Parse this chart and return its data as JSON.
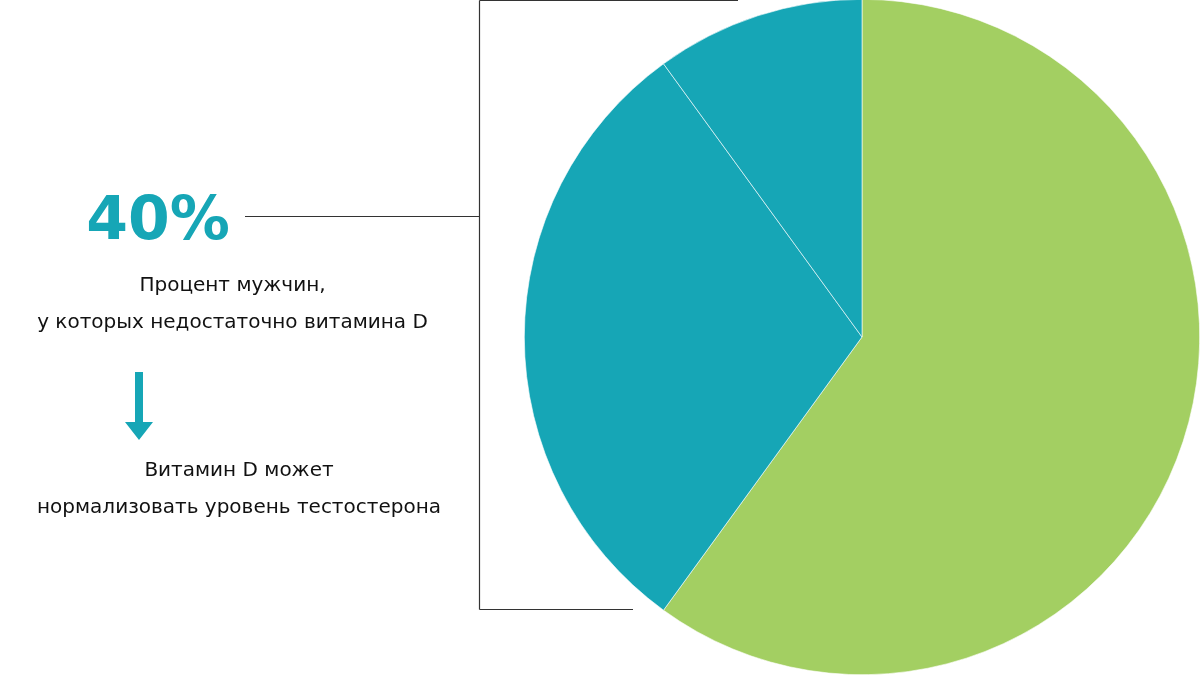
{
  "chart_data": {
    "type": "pie",
    "categories": [
      null,
      null,
      null
    ],
    "values": [
      60,
      30,
      10
    ],
    "colors": [
      "#a3cf62",
      "#16a6b6",
      "#16a6b6"
    ],
    "legend": false,
    "annotations": [
      "40%",
      "Процент мужчин,\nу которых недостаточно витамина D",
      "Витамин D может\nнормализовать уровень тестостерона"
    ]
  }
}
